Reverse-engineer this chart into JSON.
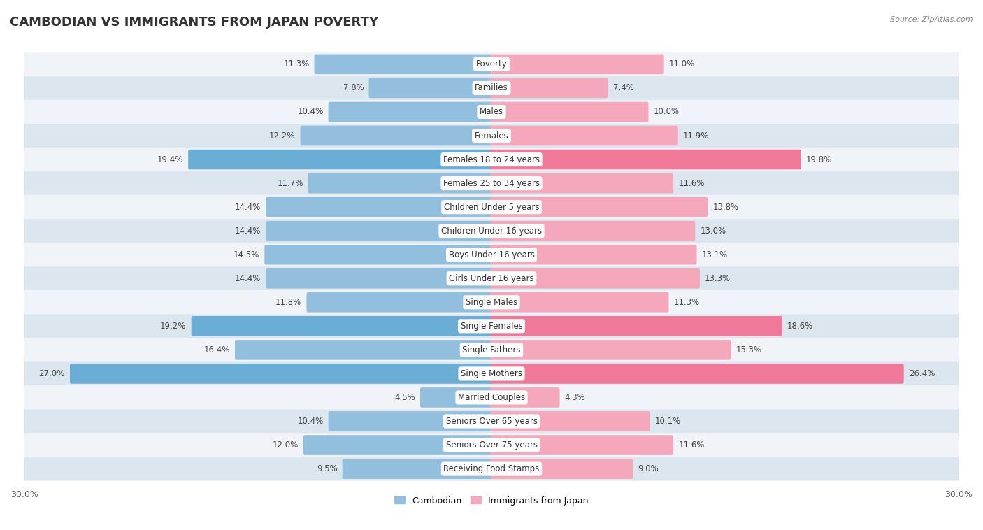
{
  "title": "CAMBODIAN VS IMMIGRANTS FROM JAPAN POVERTY",
  "source": "Source: ZipAtlas.com",
  "categories": [
    "Poverty",
    "Families",
    "Males",
    "Females",
    "Females 18 to 24 years",
    "Females 25 to 34 years",
    "Children Under 5 years",
    "Children Under 16 years",
    "Boys Under 16 years",
    "Girls Under 16 years",
    "Single Males",
    "Single Females",
    "Single Fathers",
    "Single Mothers",
    "Married Couples",
    "Seniors Over 65 years",
    "Seniors Over 75 years",
    "Receiving Food Stamps"
  ],
  "cambodian": [
    11.3,
    7.8,
    10.4,
    12.2,
    19.4,
    11.7,
    14.4,
    14.4,
    14.5,
    14.4,
    11.8,
    19.2,
    16.4,
    27.0,
    4.5,
    10.4,
    12.0,
    9.5
  ],
  "japan": [
    11.0,
    7.4,
    10.0,
    11.9,
    19.8,
    11.6,
    13.8,
    13.0,
    13.1,
    13.3,
    11.3,
    18.6,
    15.3,
    26.4,
    4.3,
    10.1,
    11.6,
    9.0
  ],
  "cambodian_color": "#92bfdd",
  "japan_color": "#f5a8bc",
  "highlight_color_cambodian": "#6aaed6",
  "highlight_color_japan": "#f07898",
  "highlight_rows": [
    4,
    11,
    13
  ],
  "xlim": 30.0,
  "bar_height": 0.68,
  "row_bg_light": "#f0f4f8",
  "row_bg_dark": "#dce6ef",
  "legend_cambodian": "Cambodian",
  "legend_japan": "Immigrants from Japan"
}
